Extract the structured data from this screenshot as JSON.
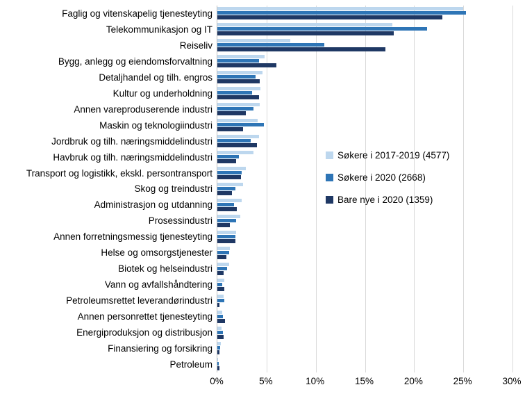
{
  "chart_data": {
    "type": "bar",
    "orientation": "horizontal",
    "title": "",
    "xlabel": "",
    "ylabel": "",
    "grid": true,
    "legend_position": "middle-right",
    "categories": [
      "Faglig og vitenskapelig tjenesteyting",
      "Telekommunikasjon og IT",
      "Reiseliv",
      "Bygg, anlegg og eiendomsforvaltning",
      "Detaljhandel og tilh. engros",
      "Kultur og underholdning",
      "Annen vareproduserende industri",
      "Maskin og teknologiindustri",
      "Jordbruk og tilh. næringsmiddelindustri",
      "Havbruk og tilh. næringsmiddelindustri",
      "Transport og logistikk, ekskl. persontransport",
      "Skog og treindustri",
      "Administrasjon og utdanning",
      "Prosessindustri",
      "Annen forretningsmessig tjenesteyting",
      "Helse og omsorgstjenester",
      "Biotek og helseindustri",
      "Vann og avfallshåndtering",
      "Petroleumsrettet leverandørindustri",
      "Annen personrettet tjenesteyting",
      "Energiproduksjon og distribusjon",
      "Finansiering og forsikring",
      "Petroleum"
    ],
    "series": [
      {
        "name": "Søkere i 2017-2019 (4577)",
        "color": "#BDD7EE",
        "values": [
          25.0,
          17.8,
          7.4,
          4.8,
          4.6,
          4.4,
          4.3,
          4.1,
          4.2,
          3.7,
          2.9,
          2.6,
          2.5,
          2.3,
          1.9,
          1.3,
          1.2,
          0.7,
          0.6,
          0.5,
          0.4,
          0.35,
          0.1
        ]
      },
      {
        "name": "Søkere i 2020 (2668)",
        "color": "#2E75B6",
        "values": [
          25.3,
          21.3,
          10.9,
          4.2,
          3.9,
          3.5,
          3.7,
          4.7,
          3.4,
          2.2,
          2.5,
          1.8,
          1.7,
          1.9,
          1.85,
          1.2,
          1.0,
          0.5,
          0.7,
          0.55,
          0.55,
          0.3,
          0.15
        ]
      },
      {
        "name": "Bare nye i 2020 (1359)",
        "color": "#1F3864",
        "values": [
          22.9,
          17.9,
          17.1,
          6.0,
          4.3,
          4.2,
          2.9,
          2.6,
          4.0,
          1.9,
          2.4,
          1.5,
          2.0,
          1.3,
          1.8,
          0.9,
          0.65,
          0.7,
          0.2,
          0.8,
          0.65,
          0.2,
          0.2
        ]
      }
    ],
    "x_axis": {
      "max": 30,
      "ticks": [
        0,
        5,
        10,
        15,
        20,
        25,
        30
      ],
      "tick_labels": [
        "0%",
        "5%",
        "10%",
        "15%",
        "20%",
        "25%",
        "30%"
      ]
    }
  },
  "colors": {
    "background": "#FFFFFF",
    "gridline": "#D9D9D9",
    "axis_line": "#BFBFBF",
    "text": "#000000"
  }
}
